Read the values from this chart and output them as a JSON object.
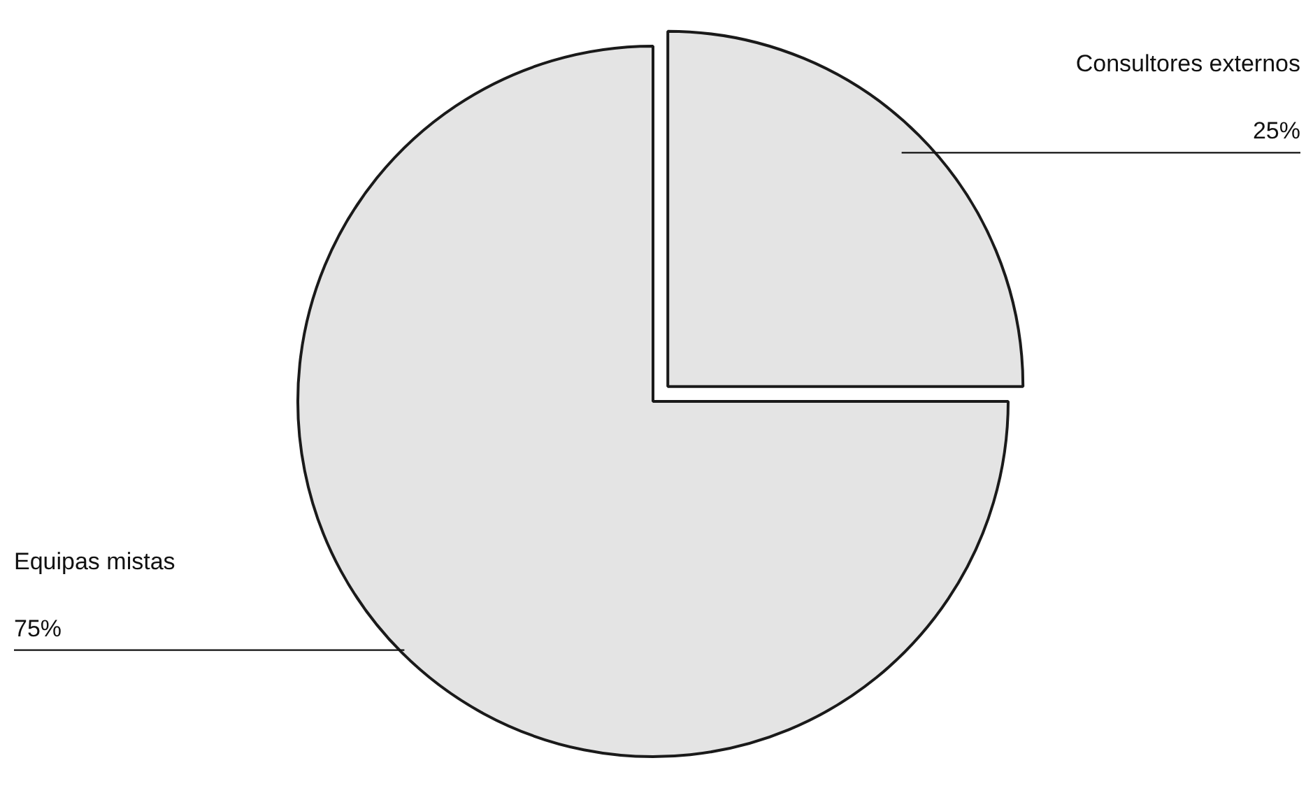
{
  "chart_data": {
    "type": "pie",
    "categories": [
      "Consultores externos",
      "Equipas mistas"
    ],
    "values": [
      25,
      75
    ],
    "colors": [
      "#e4e4e4",
      "#e4e4e4"
    ],
    "value_labels": [
      "25%",
      "75%"
    ],
    "legend": false
  }
}
